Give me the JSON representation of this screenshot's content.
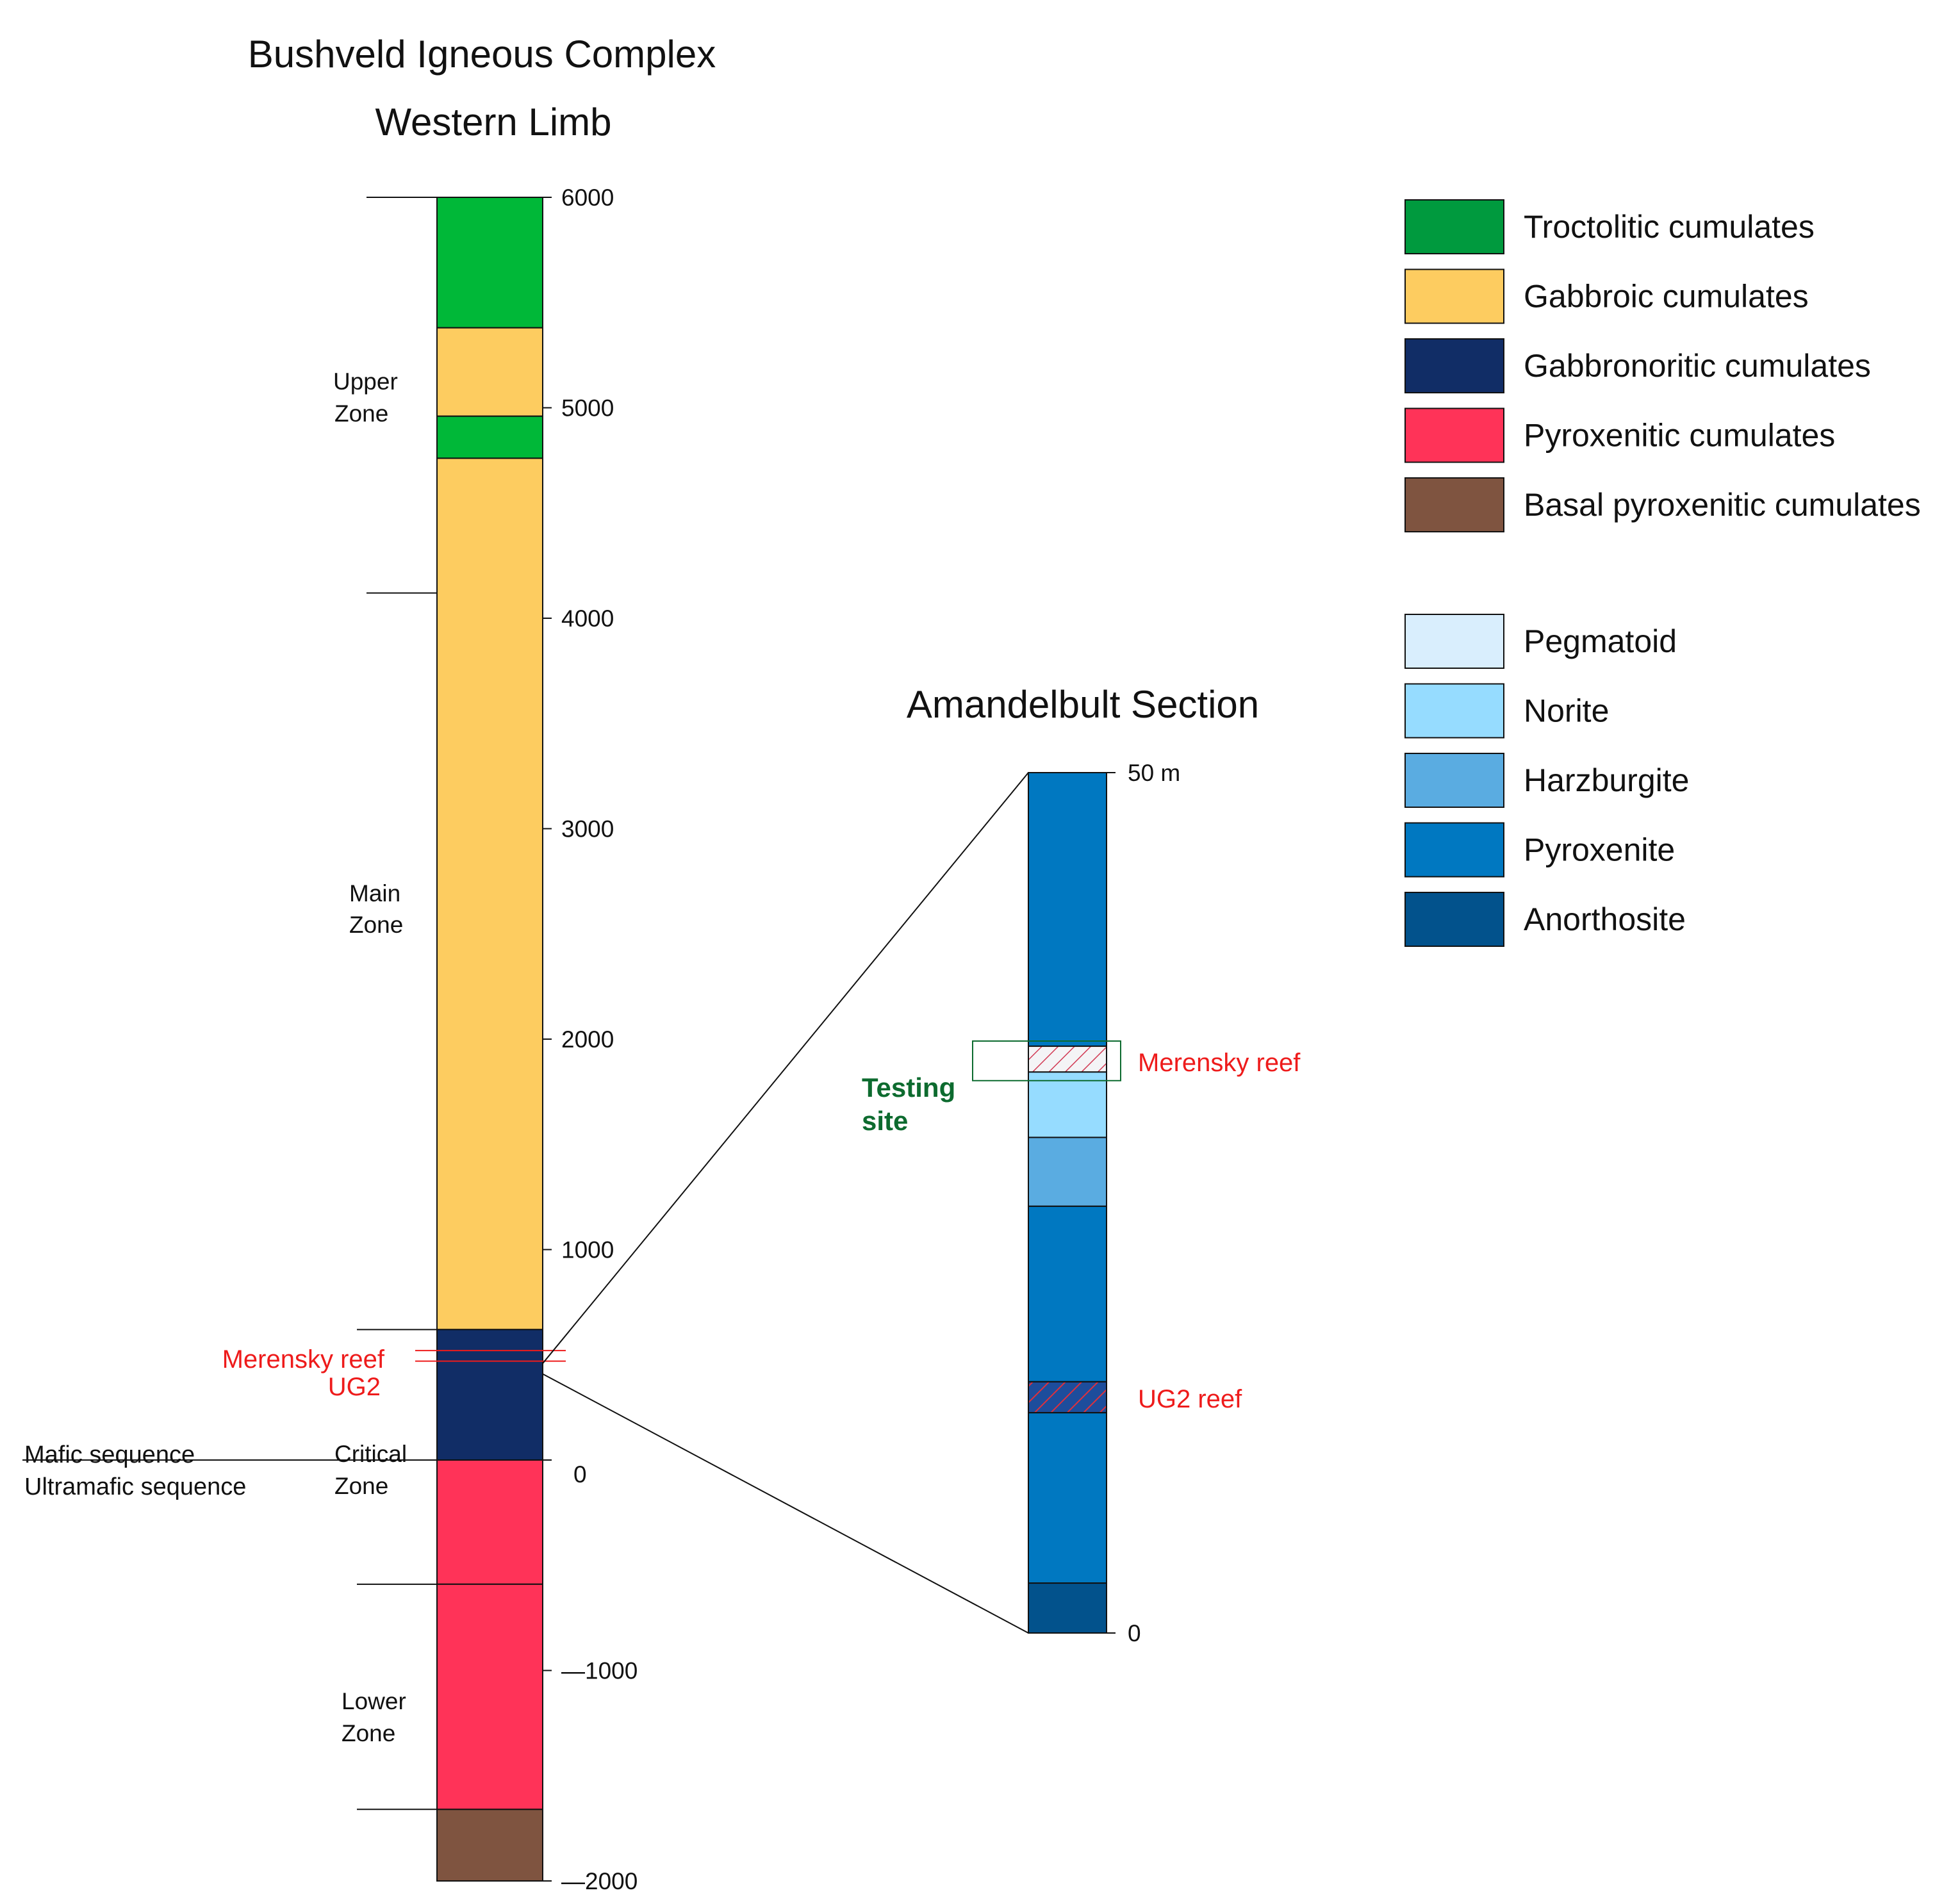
{
  "left_column": {
    "title_line1": "Bushveld Igneous Complex",
    "title_line2": "Western Limb",
    "axis_ticks": [
      {
        "label": "6000",
        "value": 6000
      },
      {
        "label": "5000",
        "value": 5000
      },
      {
        "label": "4000",
        "value": 4000
      },
      {
        "label": "3000",
        "value": 3000
      },
      {
        "label": "2000",
        "value": 2000
      },
      {
        "label": "1000",
        "value": 1000
      },
      {
        "label": "0",
        "value": 0
      },
      {
        "label": "—1000",
        "value": -1000
      },
      {
        "label": "—2000",
        "value": -2000
      }
    ],
    "layers": [
      {
        "name": "troctolitic-upper",
        "from": 5380,
        "to": 6000,
        "color": "#00b838"
      },
      {
        "name": "gabbroic-upper-a",
        "from": 4960,
        "to": 5380,
        "color": "#fdcc60"
      },
      {
        "name": "troctolitic-band",
        "from": 4760,
        "to": 4960,
        "color": "#00b838"
      },
      {
        "name": "gabbroic-main",
        "from": 620,
        "to": 4760,
        "color": "#fdcc60"
      },
      {
        "name": "gabbronoritic-critical",
        "from": 0,
        "to": 620,
        "color": "#112d66"
      },
      {
        "name": "pyroxenitic-critical",
        "from": -590,
        "to": 0,
        "color": "#ff3358"
      },
      {
        "name": "pyroxenitic-lower",
        "from": -1660,
        "to": -590,
        "color": "#ff3358"
      },
      {
        "name": "basal-pyroxenitic",
        "from": -2000,
        "to": -1660,
        "color": "#7f5440"
      }
    ],
    "zone_boundaries": [
      6000,
      4120,
      620,
      -590,
      -1660
    ],
    "zones": [
      {
        "line1": "Upper",
        "line2": "Zone"
      },
      {
        "line1": "Main",
        "line2": "Zone"
      },
      {
        "line1": "Critical",
        "line2": "Zone"
      },
      {
        "line1": "Lower",
        "line2": "Zone"
      }
    ],
    "reefs": {
      "merensky_label": "Merensky reef",
      "merensky_value": 520,
      "ug2_label": "UG2",
      "ug2_value": 470
    },
    "sequence_boundary": {
      "value": 0,
      "upper_label": "Mafic sequence",
      "lower_label": "Ultramafic sequence"
    }
  },
  "right_column": {
    "title": "Amandelbult Section",
    "axis_ticks": [
      {
        "label": "50 m",
        "value": 50
      },
      {
        "label": "0",
        "value": 0
      }
    ],
    "layers": [
      {
        "name": "pyroxenite-top",
        "from": 34.1,
        "to": 50,
        "color": "#0078c1"
      },
      {
        "name": "merensky-hatch",
        "from": 32.6,
        "to": 34.1,
        "color": "#f4f4f6",
        "hatch": "#d23b55"
      },
      {
        "name": "norite",
        "from": 28.8,
        "to": 32.6,
        "color": "#96dcff"
      },
      {
        "name": "harzburgite",
        "from": 24.8,
        "to": 28.8,
        "color": "#5aace1"
      },
      {
        "name": "pyroxenite-mid",
        "from": 14.6,
        "to": 24.8,
        "color": "#0078c1"
      },
      {
        "name": "ug2-hatch",
        "from": 12.8,
        "to": 14.6,
        "color": "#1d4d9c",
        "hatch": "#e0303c"
      },
      {
        "name": "pyroxenite-lower",
        "from": 2.9,
        "to": 12.8,
        "color": "#0078c1"
      },
      {
        "name": "anorthosite",
        "from": 0,
        "to": 2.9,
        "color": "#02528c"
      }
    ],
    "merensky_label": "Merensky reef",
    "ug2_label": "UG2 reef",
    "testing_site": {
      "line1": "Testing",
      "line2": "site",
      "from": 32.1,
      "to": 34.4
    }
  },
  "legend": {
    "group1": [
      {
        "label": "Troctolitic cumulates",
        "color": "#009a3e"
      },
      {
        "label": "Gabbroic cumulates",
        "color": "#fdcc60"
      },
      {
        "label": "Gabbronoritic cumulates",
        "color": "#112d66"
      },
      {
        "label": "Pyroxenitic cumulates",
        "color": "#ff3358"
      },
      {
        "label": "Basal pyroxenitic cumulates",
        "color": "#7f5440"
      }
    ],
    "group2": [
      {
        "label": "Pegmatoid",
        "color": "#d9eefd"
      },
      {
        "label": "Norite",
        "color": "#96dcff"
      },
      {
        "label": "Harzburgite",
        "color": "#5aace1"
      },
      {
        "label": "Pyroxenite",
        "color": "#0078c1"
      },
      {
        "label": "Anorthosite",
        "color": "#02528c"
      }
    ]
  }
}
